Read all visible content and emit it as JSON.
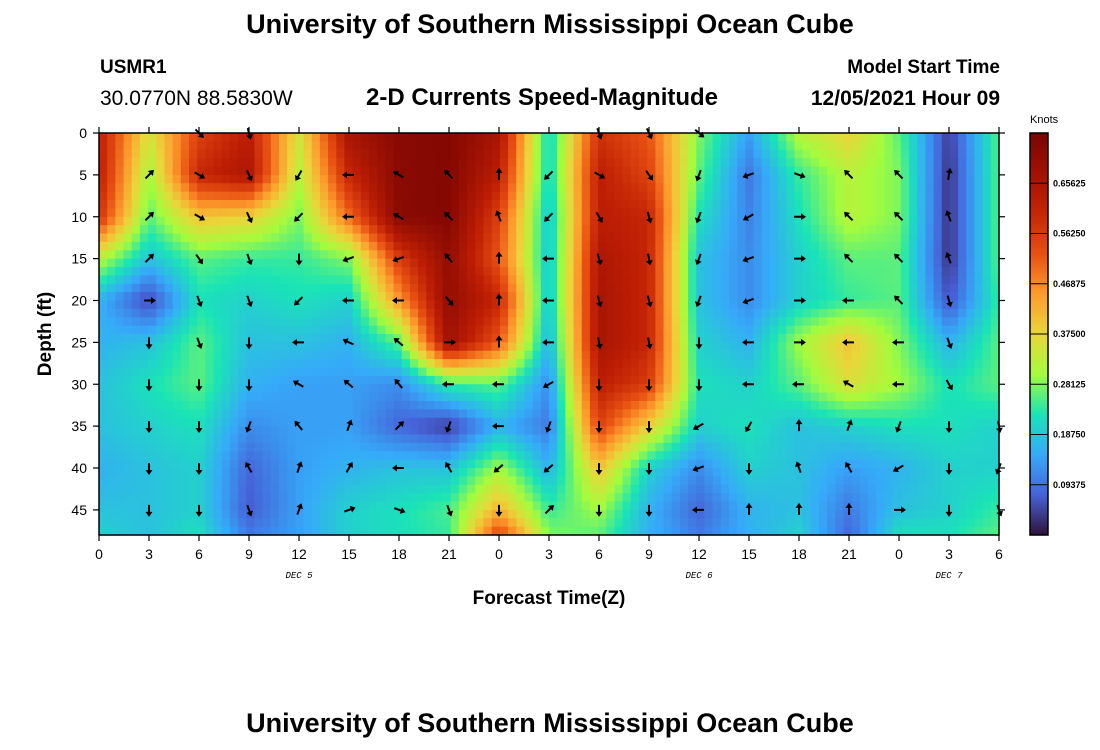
{
  "header": {
    "title": "University of Southern Mississippi Ocean Cube",
    "station_id": "USMR1",
    "station_coords": "30.0770N  88.5830W",
    "subtitle": "2-D Currents Speed-Magnitude",
    "model_label": "Model Start Time",
    "model_time": "12/05/2021 Hour 09"
  },
  "footer": {
    "title": "University of Southern Mississippi Ocean Cube"
  },
  "chart_data": {
    "type": "heatmap",
    "title": "2-D Currents Speed-Magnitude",
    "xlabel": "Forecast Time(Z)",
    "ylabel": "Depth (ft)",
    "x_range_hours": [
      0,
      54
    ],
    "ylim": [
      0,
      48
    ],
    "y_inverted": true,
    "x_ticks": [
      {
        "hour": 0,
        "label": "0"
      },
      {
        "hour": 3,
        "label": "3"
      },
      {
        "hour": 6,
        "label": "6"
      },
      {
        "hour": 9,
        "label": "9"
      },
      {
        "hour": 12,
        "label": "12"
      },
      {
        "hour": 15,
        "label": "15"
      },
      {
        "hour": 18,
        "label": "18"
      },
      {
        "hour": 21,
        "label": "21"
      },
      {
        "hour": 24,
        "label": "0"
      },
      {
        "hour": 27,
        "label": "3"
      },
      {
        "hour": 30,
        "label": "6"
      },
      {
        "hour": 33,
        "label": "9"
      },
      {
        "hour": 36,
        "label": "12"
      },
      {
        "hour": 39,
        "label": "15"
      },
      {
        "hour": 42,
        "label": "18"
      },
      {
        "hour": 45,
        "label": "21"
      },
      {
        "hour": 48,
        "label": "0"
      },
      {
        "hour": 51,
        "label": "3"
      },
      {
        "hour": 54,
        "label": "6"
      }
    ],
    "day_labels": [
      {
        "hour": 12,
        "label": "DEC 5"
      },
      {
        "hour": 36,
        "label": "DEC 6"
      },
      {
        "hour": 51,
        "label": "DEC 7"
      }
    ],
    "y_ticks": [
      0,
      5,
      10,
      15,
      20,
      25,
      30,
      35,
      40,
      45
    ],
    "colorbar": {
      "unit": "Knots",
      "min": 0,
      "max": 0.75,
      "ticks": [
        "0.65625",
        "0.56250",
        "0.46875",
        "0.37500",
        "0.28125",
        "0.18750",
        "0.09375"
      ],
      "tick_values": [
        0.65625,
        0.5625,
        0.46875,
        0.375,
        0.28125,
        0.1875,
        0.09375
      ]
    },
    "speed_grid": {
      "hours": [
        0,
        3,
        6,
        9,
        12,
        15,
        18,
        21,
        24,
        27,
        30,
        33,
        36,
        39,
        42,
        45,
        48,
        51,
        54
      ],
      "depths": [
        0,
        5,
        10,
        15,
        20,
        25,
        30,
        35,
        40,
        45,
        48
      ],
      "values": [
        [
          0.62,
          0.35,
          0.55,
          0.62,
          0.35,
          0.66,
          0.72,
          0.73,
          0.66,
          0.2,
          0.58,
          0.52,
          0.28,
          0.14,
          0.32,
          0.38,
          0.26,
          0.04,
          0.26
        ],
        [
          0.62,
          0.3,
          0.6,
          0.65,
          0.32,
          0.6,
          0.72,
          0.73,
          0.62,
          0.2,
          0.62,
          0.55,
          0.26,
          0.1,
          0.24,
          0.32,
          0.28,
          0.03,
          0.26
        ],
        [
          0.58,
          0.26,
          0.4,
          0.38,
          0.28,
          0.5,
          0.72,
          0.73,
          0.55,
          0.18,
          0.62,
          0.6,
          0.22,
          0.11,
          0.22,
          0.32,
          0.28,
          0.03,
          0.26
        ],
        [
          0.32,
          0.18,
          0.26,
          0.24,
          0.24,
          0.28,
          0.56,
          0.7,
          0.52,
          0.18,
          0.65,
          0.6,
          0.18,
          0.12,
          0.2,
          0.26,
          0.26,
          0.03,
          0.26
        ],
        [
          0.16,
          0.05,
          0.22,
          0.2,
          0.22,
          0.2,
          0.45,
          0.7,
          0.6,
          0.18,
          0.66,
          0.6,
          0.18,
          0.12,
          0.2,
          0.24,
          0.26,
          0.06,
          0.24
        ],
        [
          0.16,
          0.18,
          0.26,
          0.18,
          0.18,
          0.16,
          0.26,
          0.68,
          0.52,
          0.16,
          0.66,
          0.6,
          0.2,
          0.16,
          0.3,
          0.4,
          0.28,
          0.16,
          0.26
        ],
        [
          0.18,
          0.22,
          0.26,
          0.16,
          0.14,
          0.14,
          0.12,
          0.24,
          0.26,
          0.12,
          0.62,
          0.56,
          0.22,
          0.2,
          0.26,
          0.36,
          0.3,
          0.22,
          0.26
        ],
        [
          0.18,
          0.2,
          0.22,
          0.12,
          0.14,
          0.14,
          0.08,
          0.04,
          0.16,
          0.1,
          0.55,
          0.38,
          0.2,
          0.22,
          0.18,
          0.2,
          0.22,
          0.22,
          0.2
        ],
        [
          0.16,
          0.18,
          0.2,
          0.08,
          0.14,
          0.16,
          0.18,
          0.18,
          0.3,
          0.16,
          0.4,
          0.2,
          0.12,
          0.2,
          0.18,
          0.14,
          0.16,
          0.2,
          0.2
        ],
        [
          0.18,
          0.18,
          0.2,
          0.07,
          0.14,
          0.2,
          0.22,
          0.25,
          0.42,
          0.24,
          0.3,
          0.16,
          0.08,
          0.16,
          0.18,
          0.1,
          0.18,
          0.2,
          0.24
        ],
        [
          0.2,
          0.18,
          0.22,
          0.1,
          0.14,
          0.2,
          0.22,
          0.24,
          0.55,
          0.28,
          0.26,
          0.16,
          0.1,
          0.16,
          0.2,
          0.08,
          0.22,
          0.22,
          0.26
        ]
      ]
    },
    "vectors": {
      "hours": [
        3,
        6,
        9,
        12,
        15,
        18,
        21,
        24,
        27,
        30,
        33,
        36,
        39,
        42,
        45,
        48,
        51,
        54
      ],
      "depths": [
        0,
        5,
        10,
        15,
        20,
        25,
        30,
        35,
        40,
        45
      ],
      "direction_deg": [
        [
          null,
          135,
          165,
          null,
          null,
          null,
          null,
          null,
          null,
          160,
          155,
          130,
          null,
          null,
          null,
          null,
          null,
          null
        ],
        [
          45,
          120,
          155,
          210,
          270,
          300,
          315,
          0,
          225,
          120,
          145,
          200,
          250,
          110,
          315,
          315,
          10,
          null
        ],
        [
          45,
          120,
          155,
          225,
          270,
          300,
          315,
          340,
          225,
          150,
          165,
          200,
          240,
          90,
          315,
          315,
          340,
          null
        ],
        [
          45,
          145,
          160,
          180,
          250,
          250,
          320,
          0,
          270,
          165,
          170,
          200,
          250,
          90,
          315,
          315,
          340,
          null
        ],
        [
          90,
          160,
          160,
          225,
          270,
          270,
          140,
          0,
          270,
          165,
          165,
          200,
          250,
          90,
          270,
          315,
          165,
          null
        ],
        [
          180,
          160,
          180,
          270,
          295,
          310,
          90,
          0,
          270,
          170,
          170,
          180,
          270,
          90,
          270,
          270,
          160,
          null
        ],
        [
          180,
          180,
          180,
          300,
          310,
          320,
          270,
          270,
          240,
          180,
          180,
          180,
          270,
          270,
          300,
          270,
          150,
          null
        ],
        [
          180,
          180,
          200,
          320,
          20,
          45,
          200,
          270,
          200,
          180,
          180,
          240,
          210,
          0,
          20,
          200,
          180,
          170
        ],
        [
          180,
          180,
          330,
          20,
          30,
          270,
          330,
          230,
          230,
          180,
          180,
          250,
          180,
          340,
          330,
          240,
          180,
          200
        ],
        [
          180,
          180,
          160,
          20,
          70,
          110,
          160,
          180,
          45,
          180,
          180,
          270,
          0,
          0,
          0,
          90,
          180,
          160
        ]
      ]
    }
  }
}
